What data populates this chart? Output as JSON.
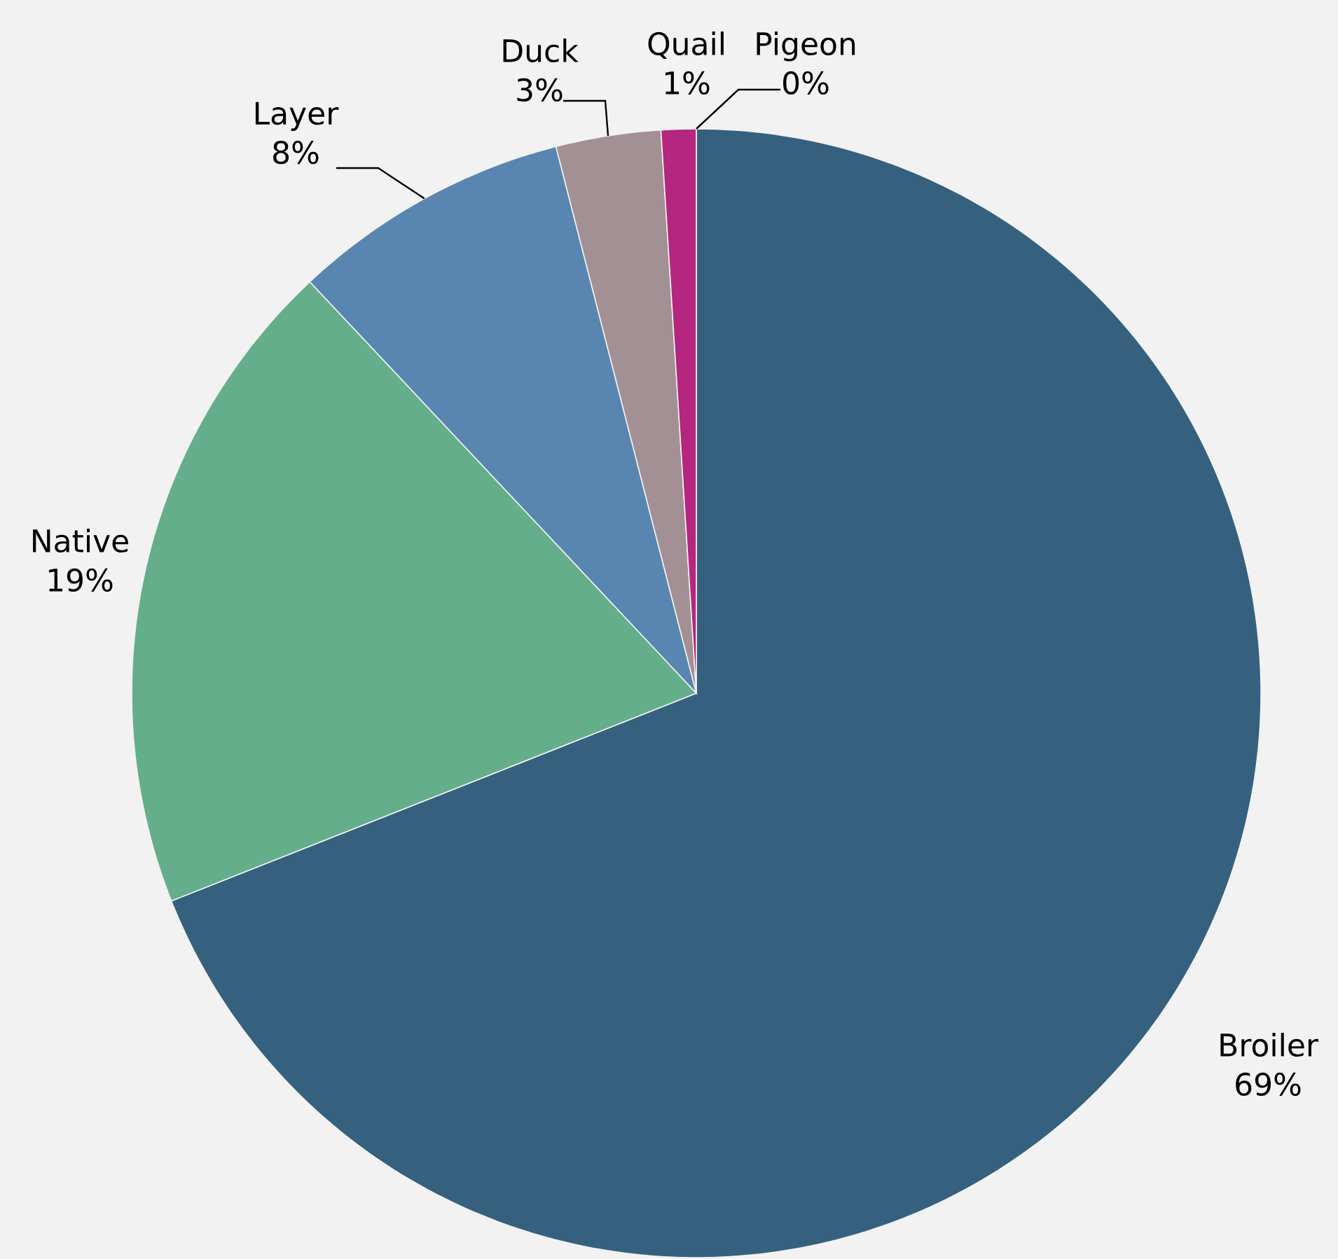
{
  "chart_data": {
    "type": "pie",
    "categories": [
      "Broiler",
      "Native",
      "Layer",
      "Duck",
      "Quail",
      "Pigeon"
    ],
    "values": [
      69,
      19,
      8,
      3,
      1,
      0
    ],
    "value_labels": [
      "69%",
      "19%",
      "8%",
      "3%",
      "1%",
      "0%"
    ],
    "colors": [
      "#35617f",
      "#64ae8c",
      "#5886b0",
      "#a39095",
      "#b5267f",
      "#7a1f5c"
    ]
  }
}
